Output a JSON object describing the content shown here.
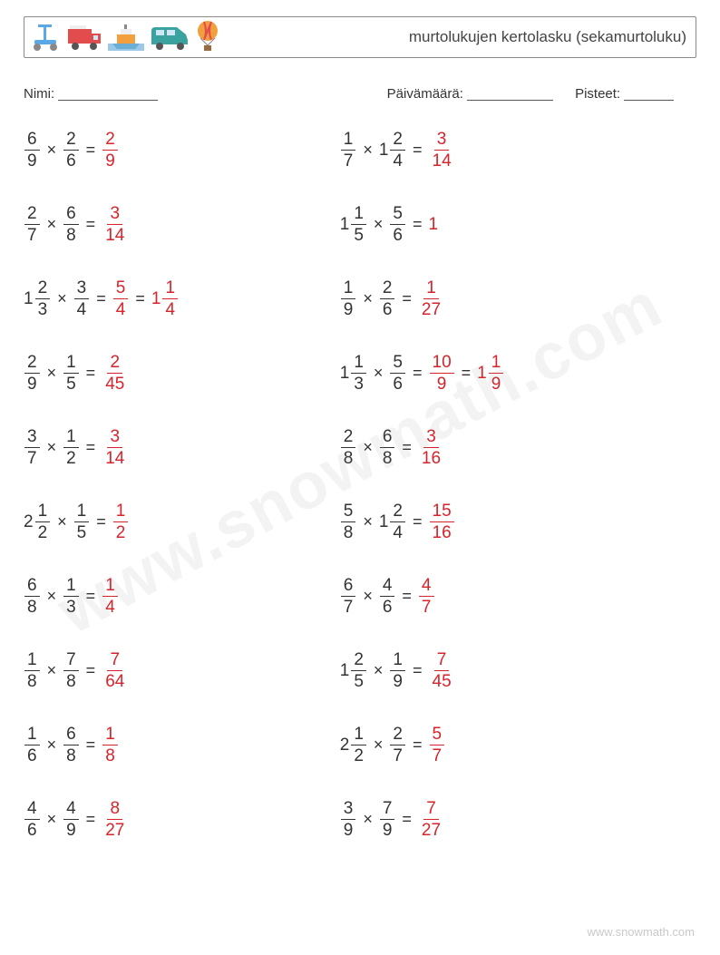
{
  "header": {
    "title": "murtolukujen kertolasku (sekamurtoluku)",
    "icon_colors": {
      "scooter": "#5aa9e6",
      "truck_body": "#e24c4c",
      "truck_wheel": "#555",
      "boat_hull": "#6aaed6",
      "boat_top": "#f2a03d",
      "boat_water": "#9cc8e8",
      "van": "#3aa39f",
      "balloon_top": "#f2a03d",
      "balloon_stripe": "#e24c4c",
      "balloon_basket": "#9a6a3f"
    }
  },
  "meta": {
    "name_label": "Nimi:",
    "date_label": "Päivämäärä:",
    "score_label": "Pisteet:",
    "name_underline_w": 110,
    "date_underline_w": 95,
    "score_underline_w": 55
  },
  "style": {
    "text_color": "#333",
    "answer_color": "#d8232a",
    "problem_fontsize": 19,
    "row_gap": 36,
    "col_left_pct": 47
  },
  "problems": {
    "left": [
      {
        "a": {
          "n": "6",
          "d": "9"
        },
        "b": {
          "n": "2",
          "d": "6"
        },
        "ans": [
          {
            "n": "2",
            "d": "9"
          }
        ]
      },
      {
        "a": {
          "n": "2",
          "d": "7"
        },
        "b": {
          "n": "6",
          "d": "8"
        },
        "ans": [
          {
            "n": "3",
            "d": "14"
          }
        ]
      },
      {
        "a": {
          "w": "1",
          "n": "2",
          "d": "3"
        },
        "b": {
          "n": "3",
          "d": "4"
        },
        "ans": [
          {
            "n": "5",
            "d": "4"
          },
          {
            "w": "1",
            "n": "1",
            "d": "4"
          }
        ]
      },
      {
        "a": {
          "n": "2",
          "d": "9"
        },
        "b": {
          "n": "1",
          "d": "5"
        },
        "ans": [
          {
            "n": "2",
            "d": "45"
          }
        ]
      },
      {
        "a": {
          "n": "3",
          "d": "7"
        },
        "b": {
          "n": "1",
          "d": "2"
        },
        "ans": [
          {
            "n": "3",
            "d": "14"
          }
        ]
      },
      {
        "a": {
          "w": "2",
          "n": "1",
          "d": "2"
        },
        "b": {
          "n": "1",
          "d": "5"
        },
        "ans": [
          {
            "n": "1",
            "d": "2"
          }
        ]
      },
      {
        "a": {
          "n": "6",
          "d": "8"
        },
        "b": {
          "n": "1",
          "d": "3"
        },
        "ans": [
          {
            "n": "1",
            "d": "4"
          }
        ]
      },
      {
        "a": {
          "n": "1",
          "d": "8"
        },
        "b": {
          "n": "7",
          "d": "8"
        },
        "ans": [
          {
            "n": "7",
            "d": "64"
          }
        ]
      },
      {
        "a": {
          "n": "1",
          "d": "6"
        },
        "b": {
          "n": "6",
          "d": "8"
        },
        "ans": [
          {
            "n": "1",
            "d": "8"
          }
        ]
      },
      {
        "a": {
          "n": "4",
          "d": "6"
        },
        "b": {
          "n": "4",
          "d": "9"
        },
        "ans": [
          {
            "n": "8",
            "d": "27"
          }
        ]
      }
    ],
    "right": [
      {
        "a": {
          "n": "1",
          "d": "7"
        },
        "b": {
          "w": "1",
          "n": "2",
          "d": "4"
        },
        "ans": [
          {
            "n": "3",
            "d": "14"
          }
        ]
      },
      {
        "a": {
          "w": "1",
          "n": "1",
          "d": "5"
        },
        "b": {
          "n": "5",
          "d": "6"
        },
        "ans": [
          {
            "int": "1"
          }
        ]
      },
      {
        "a": {
          "n": "1",
          "d": "9"
        },
        "b": {
          "n": "2",
          "d": "6"
        },
        "ans": [
          {
            "n": "1",
            "d": "27"
          }
        ]
      },
      {
        "a": {
          "w": "1",
          "n": "1",
          "d": "3"
        },
        "b": {
          "n": "5",
          "d": "6"
        },
        "ans": [
          {
            "n": "10",
            "d": "9"
          },
          {
            "w": "1",
            "n": "1",
            "d": "9"
          }
        ]
      },
      {
        "a": {
          "n": "2",
          "d": "8"
        },
        "b": {
          "n": "6",
          "d": "8"
        },
        "ans": [
          {
            "n": "3",
            "d": "16"
          }
        ]
      },
      {
        "a": {
          "n": "5",
          "d": "8"
        },
        "b": {
          "w": "1",
          "n": "2",
          "d": "4"
        },
        "ans": [
          {
            "n": "15",
            "d": "16"
          }
        ]
      },
      {
        "a": {
          "n": "6",
          "d": "7"
        },
        "b": {
          "n": "4",
          "d": "6"
        },
        "ans": [
          {
            "n": "4",
            "d": "7"
          }
        ]
      },
      {
        "a": {
          "w": "1",
          "n": "2",
          "d": "5"
        },
        "b": {
          "n": "1",
          "d": "9"
        },
        "ans": [
          {
            "n": "7",
            "d": "45"
          }
        ]
      },
      {
        "a": {
          "w": "2",
          "n": "1",
          "d": "2"
        },
        "b": {
          "n": "2",
          "d": "7"
        },
        "ans": [
          {
            "n": "5",
            "d": "7"
          }
        ]
      },
      {
        "a": {
          "n": "3",
          "d": "9"
        },
        "b": {
          "n": "7",
          "d": "9"
        },
        "ans": [
          {
            "n": "7",
            "d": "27"
          }
        ]
      }
    ]
  },
  "watermark": "www.snowmath.com",
  "footer": "www.snowmath.com"
}
